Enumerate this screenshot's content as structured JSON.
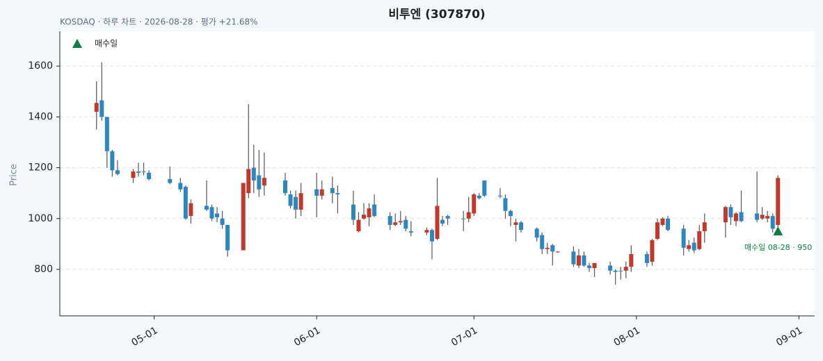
{
  "chart_data": {
    "type": "candlestick",
    "title": "비투엔 (307870)",
    "subtitle": "KOSDAQ · 하루 차트 · 2026-08-28 · 평가 +21.68%",
    "ylabel": "Price",
    "up_color": "#c0392b",
    "down_color": "#2e86c1",
    "wick_color": "#555555",
    "x": [
      "04-20",
      "04-21",
      "04-22",
      "04-23",
      "04-24",
      "04-27",
      "04-28",
      "04-29",
      "04-30",
      "05-04",
      "05-06",
      "05-07",
      "05-08",
      "05-11",
      "05-12",
      "05-13",
      "05-14",
      "05-15",
      "05-18",
      "05-19",
      "05-20",
      "05-21",
      "05-22",
      "05-26",
      "05-27",
      "05-28",
      "05-29",
      "06-01",
      "06-02",
      "06-04",
      "06-05",
      "06-08",
      "06-09",
      "06-10",
      "06-11",
      "06-12",
      "06-15",
      "06-16",
      "06-17",
      "06-18",
      "06-19",
      "06-22",
      "06-23",
      "06-24",
      "06-25",
      "06-26",
      "06-29",
      "06-30",
      "07-01",
      "07-02",
      "07-03",
      "07-06",
      "07-07",
      "07-08",
      "07-09",
      "07-10",
      "07-13",
      "07-14",
      "07-15",
      "07-16",
      "07-17",
      "07-20",
      "07-21",
      "07-22",
      "07-23",
      "07-24",
      "07-27",
      "07-28",
      "07-29",
      "07-30",
      "07-31",
      "08-03",
      "08-04",
      "08-05",
      "08-06",
      "08-07",
      "08-10",
      "08-11",
      "08-12",
      "08-13",
      "08-14",
      "08-18",
      "08-19",
      "08-20",
      "08-21",
      "08-24",
      "08-25",
      "08-26",
      "08-27",
      "08-28"
    ],
    "open": [
      1420,
      1465,
      1400,
      1265,
      1190,
      1160,
      1185,
      1185,
      1180,
      1155,
      1140,
      1125,
      1010,
      1050,
      1045,
      1020,
      1000,
      975,
      875,
      1100,
      1200,
      1170,
      1130,
      1150,
      1095,
      1085,
      1035,
      1115,
      1090,
      1120,
      1100,
      1055,
      950,
      1000,
      1005,
      1055,
      1010,
      975,
      985,
      995,
      950,
      945,
      955,
      920,
      995,
      1010,
      1000,
      1000,
      1020,
      1090,
      1150,
      1090,
      1080,
      1030,
      975,
      985,
      960,
      935,
      880,
      895,
      868,
      870,
      815,
      855,
      815,
      805,
      815,
      795,
      795,
      795,
      810,
      860,
      830,
      920,
      975,
      1000,
      960,
      880,
      905,
      880,
      950,
      985,
      1045,
      990,
      1025,
      1020,
      1000,
      1000,
      1010,
      975
    ],
    "high": [
      1540,
      1615,
      1400,
      1270,
      1230,
      1195,
      1220,
      1220,
      1190,
      1205,
      1160,
      1130,
      1075,
      1150,
      1055,
      1045,
      1030,
      975,
      1140,
      1450,
      1290,
      1270,
      1260,
      1180,
      1110,
      1110,
      1140,
      1180,
      1150,
      1165,
      1130,
      1110,
      1025,
      1060,
      1060,
      1095,
      1025,
      1020,
      1030,
      1010,
      990,
      965,
      960,
      1160,
      1010,
      1015,
      1030,
      1085,
      1100,
      1100,
      1150,
      1120,
      1095,
      1035,
      1000,
      990,
      965,
      945,
      905,
      900,
      872,
      890,
      880,
      870,
      825,
      825,
      830,
      800,
      810,
      830,
      895,
      870,
      920,
      1000,
      1005,
      1010,
      975,
      915,
      925,
      975,
      1020,
      1050,
      1055,
      1025,
      1110,
      1185,
      1045,
      1030,
      1020,
      1170
    ],
    "low": [
      1350,
      1385,
      1200,
      1165,
      1170,
      1140,
      1165,
      1170,
      1150,
      1135,
      1105,
      995,
      980,
      1030,
      990,
      985,
      960,
      850,
      875,
      1080,
      1100,
      1085,
      1090,
      1090,
      1040,
      1000,
      1010,
      1005,
      1075,
      1060,
      1020,
      975,
      945,
      995,
      970,
      1005,
      955,
      970,
      975,
      950,
      930,
      935,
      840,
      915,
      970,
      975,
      950,
      985,
      1010,
      1075,
      1085,
      1080,
      1000,
      970,
      910,
      945,
      910,
      860,
      860,
      815,
      866,
      810,
      805,
      810,
      790,
      770,
      780,
      740,
      760,
      765,
      790,
      810,
      815,
      915,
      970,
      950,
      855,
      870,
      865,
      875,
      905,
      925,
      975,
      970,
      985,
      985,
      995,
      985,
      945,
      965
    ],
    "close": [
      1455,
      1400,
      1265,
      1190,
      1175,
      1185,
      1180,
      1183,
      1155,
      1140,
      1115,
      1000,
      1060,
      1035,
      1000,
      1005,
      975,
      875,
      1140,
      1195,
      1150,
      1115,
      1160,
      1100,
      1050,
      1035,
      1100,
      1090,
      1115,
      1100,
      1095,
      995,
      995,
      1015,
      1040,
      1010,
      975,
      985,
      990,
      960,
      945,
      955,
      910,
      1050,
      980,
      1000,
      998,
      1025,
      1095,
      1080,
      1090,
      1087,
      1030,
      1010,
      985,
      955,
      925,
      880,
      885,
      870,
      870,
      820,
      855,
      815,
      805,
      825,
      795,
      790,
      793,
      810,
      860,
      825,
      915,
      985,
      1000,
      955,
      885,
      895,
      875,
      950,
      985,
      1045,
      1005,
      1020,
      990,
      995,
      1015,
      1010,
      960,
      1160
    ],
    "markers": [
      {
        "name": "매수일",
        "x": "08-28",
        "y": 950,
        "color": "#0a7e43",
        "label": "매수일 08-28 · 950"
      }
    ],
    "legend": "upper left",
    "xlim": [
      "04-13",
      "09-04"
    ],
    "xticks": [
      "05-01",
      "06-01",
      "07-01",
      "08-01",
      "09-01"
    ],
    "ylim": [
      617,
      1737
    ],
    "yticks": [
      800,
      1000,
      1200,
      1400,
      1600
    ],
    "grid": true
  }
}
